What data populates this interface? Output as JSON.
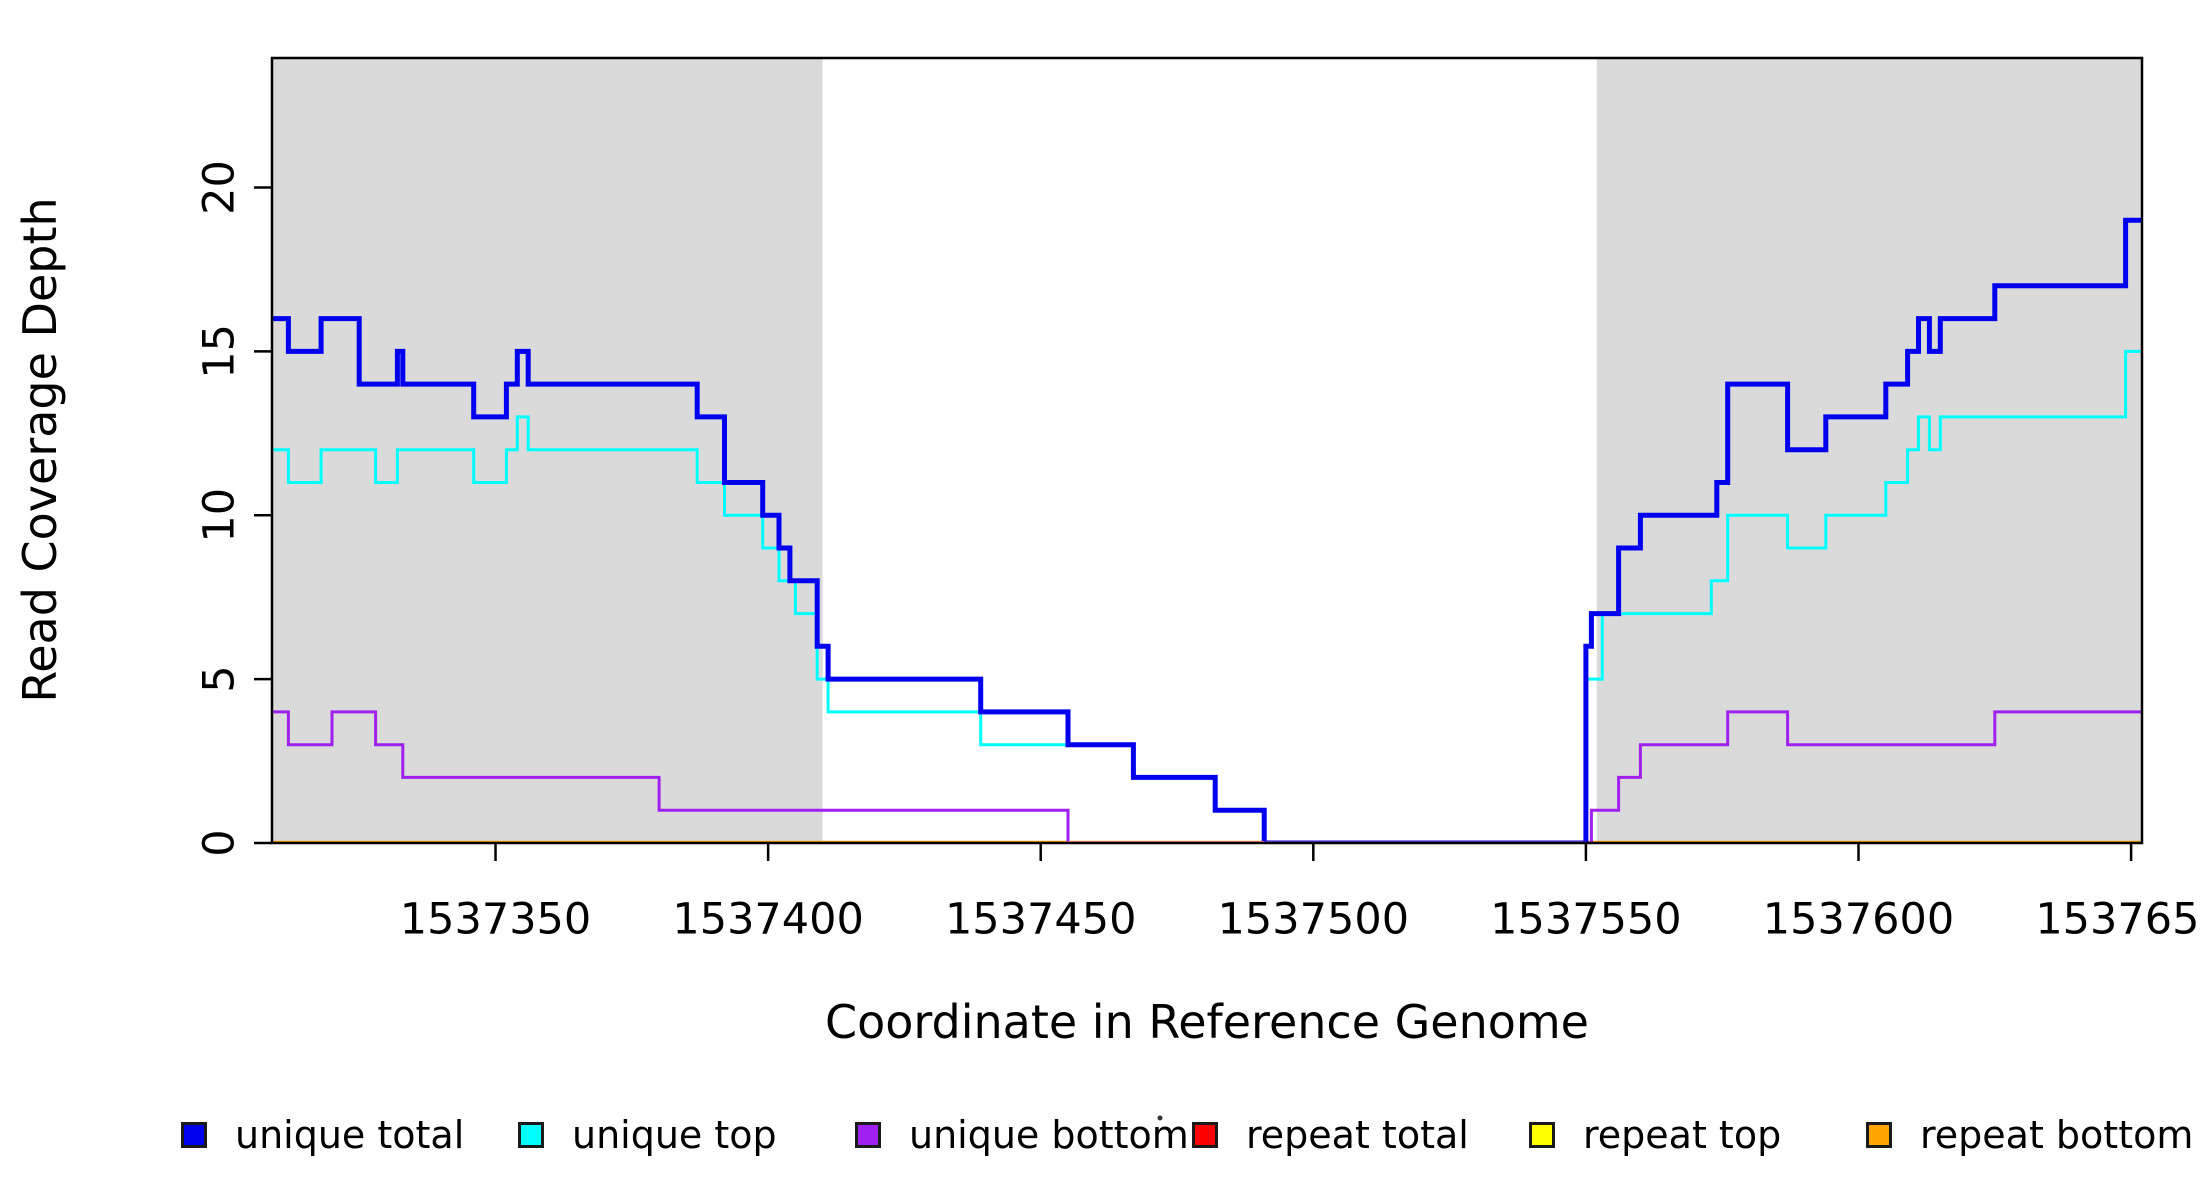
{
  "figure": {
    "background": "#ffffff",
    "plot_border_color": "#000000",
    "shaded_band_color": "#dadada"
  },
  "chart_data": {
    "type": "line",
    "subtype": "step-coverage-plot",
    "title": "",
    "xlabel": "Coordinate in Reference Genome",
    "ylabel": "Read Coverage Depth",
    "xlim": [
      1537309,
      1537652
    ],
    "ylim": [
      0,
      23.95
    ],
    "grid": false,
    "x_ticks": [
      1537350,
      1537400,
      1537450,
      1537500,
      1537550,
      1537600,
      1537650
    ],
    "x_tick_labels": [
      "1537350",
      "1537400",
      "1537450",
      "1537500",
      "1537550",
      "1537600",
      "1537650"
    ],
    "y_ticks": [
      0,
      5,
      10,
      15,
      20
    ],
    "y_tick_labels": [
      "0",
      "5",
      "10",
      "15",
      "20"
    ],
    "shaded_regions": [
      {
        "name": "left-repeat-flank",
        "x0": 1537309,
        "x1": 1537410
      },
      {
        "name": "right-repeat-flank",
        "x0": 1537552,
        "x1": 1537652
      }
    ],
    "series": [
      {
        "name": "repeat top",
        "color": "#ffff00",
        "width": 4,
        "steps": [
          [
            1537309,
            0
          ]
        ]
      },
      {
        "name": "repeat total",
        "color": "#ff0000",
        "width": 4,
        "steps": [
          [
            1537309,
            0
          ]
        ]
      },
      {
        "name": "repeat bottom",
        "color": "#ffa500",
        "width": 4.5,
        "steps": [
          [
            1537309,
            0
          ]
        ]
      },
      {
        "name": "unique bottom",
        "color": "#a020f0",
        "width": 3,
        "steps": [
          [
            1537309,
            4
          ],
          [
            1537312,
            3
          ],
          [
            1537320,
            4
          ],
          [
            1537328,
            3
          ],
          [
            1537333,
            2
          ],
          [
            1537380,
            1
          ],
          [
            1537455,
            0
          ],
          [
            1537551,
            1
          ],
          [
            1537556,
            2
          ],
          [
            1537560,
            3
          ],
          [
            1537576,
            4
          ],
          [
            1537587,
            3
          ],
          [
            1537625,
            4
          ]
        ]
      },
      {
        "name": "unique top",
        "color": "#00ffff",
        "width": 3,
        "steps": [
          [
            1537309,
            12
          ],
          [
            1537312,
            11
          ],
          [
            1537318,
            12
          ],
          [
            1537328,
            11
          ],
          [
            1537332,
            12
          ],
          [
            1537346,
            11
          ],
          [
            1537352,
            12
          ],
          [
            1537354,
            13
          ],
          [
            1537356,
            12
          ],
          [
            1537387,
            11
          ],
          [
            1537392,
            10
          ],
          [
            1537399,
            9
          ],
          [
            1537402,
            8
          ],
          [
            1537405,
            7
          ],
          [
            1537409,
            5
          ],
          [
            1537411,
            4
          ],
          [
            1537439,
            3
          ],
          [
            1537467,
            2
          ],
          [
            1537482,
            1
          ],
          [
            1537491,
            0
          ],
          [
            1537550,
            5
          ],
          [
            1537553,
            7
          ],
          [
            1537573,
            8
          ],
          [
            1537576,
            10
          ],
          [
            1537587,
            9
          ],
          [
            1537594,
            10
          ],
          [
            1537605,
            11
          ],
          [
            1537609,
            12
          ],
          [
            1537611,
            13
          ],
          [
            1537613,
            12
          ],
          [
            1537615,
            13
          ],
          [
            1537649,
            15
          ]
        ]
      },
      {
        "name": "unique total",
        "color": "#0000ee",
        "width": 5,
        "steps": [
          [
            1537309,
            16
          ],
          [
            1537312,
            15
          ],
          [
            1537318,
            16
          ],
          [
            1537325,
            14
          ],
          [
            1537332,
            15
          ],
          [
            1537333,
            14
          ],
          [
            1537346,
            13
          ],
          [
            1537352,
            14
          ],
          [
            1537354,
            15
          ],
          [
            1537356,
            14
          ],
          [
            1537387,
            13
          ],
          [
            1537392,
            11
          ],
          [
            1537399,
            10
          ],
          [
            1537402,
            9
          ],
          [
            1537404,
            8
          ],
          [
            1537409,
            6
          ],
          [
            1537411,
            5
          ],
          [
            1537439,
            4
          ],
          [
            1537455,
            3
          ],
          [
            1537467,
            2
          ],
          [
            1537482,
            1
          ],
          [
            1537491,
            0
          ],
          [
            1537550,
            6
          ],
          [
            1537551,
            7
          ],
          [
            1537556,
            9
          ],
          [
            1537560,
            10
          ],
          [
            1537574,
            11
          ],
          [
            1537576,
            14
          ],
          [
            1537587,
            12
          ],
          [
            1537594,
            13
          ],
          [
            1537605,
            14
          ],
          [
            1537609,
            15
          ],
          [
            1537611,
            16
          ],
          [
            1537613,
            15
          ],
          [
            1537615,
            16
          ],
          [
            1537625,
            17
          ],
          [
            1537649,
            19
          ]
        ]
      }
    ],
    "baseline_overlays": [
      {
        "name": "repeat-total-visible-at-zero",
        "x0": 1537455,
        "x1": 1537491,
        "color": "#ff9090",
        "width": 4
      },
      {
        "name": "unique-total-at-zero",
        "x0": 1537491,
        "x1": 1537550,
        "color": "#6a2fd8",
        "width": 4
      }
    ],
    "legend": {
      "position": "bottom",
      "items": [
        {
          "label": "unique total",
          "color": "#0000ee"
        },
        {
          "label": "unique top",
          "color": "#00ffff"
        },
        {
          "label": "unique bottom",
          "color": "#a020f0"
        },
        {
          "label": "repeat total",
          "color": "#ff0000"
        },
        {
          "label": "repeat top",
          "color": "#ffff00"
        },
        {
          "label": "repeat bottom",
          "color": "#ffa500"
        }
      ]
    }
  }
}
